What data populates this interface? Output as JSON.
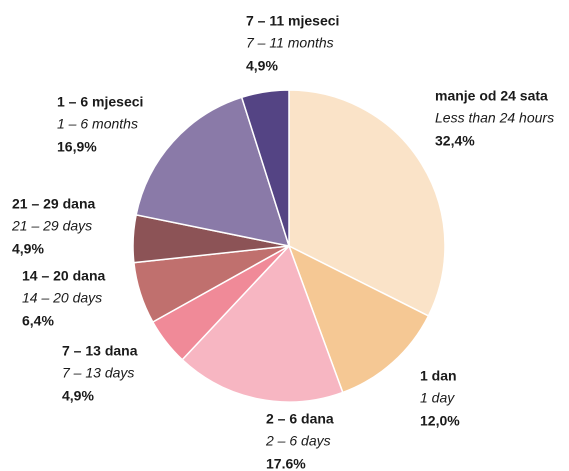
{
  "chart_data": {
    "type": "pie",
    "categories": [
      "manje od 24 sata",
      "1 dan",
      "2 – 6 dana",
      "7 – 13 dana",
      "14 – 20 dana",
      "21 – 29 dana",
      "1 – 6 mjeseci",
      "7 – 11 mjeseci"
    ],
    "subcategories": [
      "Less than 24 hours",
      "1 day",
      "2 – 6 days",
      "7 – 13 days",
      "14 – 20 days",
      "21 – 29 days",
      "1 – 6 months",
      "7 – 11 months"
    ],
    "values": [
      32.4,
      12.0,
      17.6,
      4.9,
      6.4,
      4.9,
      16.9,
      4.9
    ],
    "value_labels": [
      "32,4%",
      "12,0%",
      "17.6%",
      "4,9%",
      "6,4%",
      "4,9%",
      "16,9%",
      "4,9%"
    ],
    "colors": [
      "#fae3c8",
      "#f5c894",
      "#f7b6c2",
      "#f08a98",
      "#c0706e",
      "#8c5356",
      "#8a7aa8",
      "#544484"
    ]
  }
}
